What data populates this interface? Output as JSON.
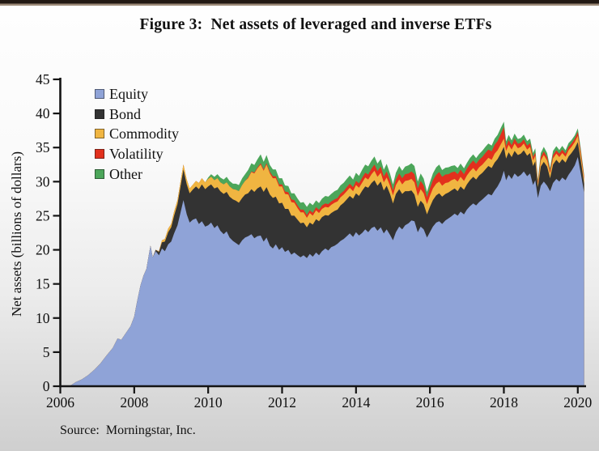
{
  "page": {
    "title": "Figure 3:  Net assets of leveraged and inverse ETFs",
    "source_note": "Source:  Morningstar, Inc."
  },
  "chart_data": {
    "type": "area",
    "stacked": true,
    "title": "Figure 3:  Net assets of leveraged and inverse ETFs",
    "xlabel": "",
    "ylabel": "Net assets (billions of dollars)",
    "units": "billions of dollars",
    "source": "Morningstar, Inc.",
    "xlim": [
      2006,
      2020.3
    ],
    "ylim": [
      0,
      45
    ],
    "x_ticks": [
      2006,
      2008,
      2010,
      2012,
      2014,
      2016,
      2018,
      2020
    ],
    "y_ticks": [
      0,
      5,
      10,
      15,
      20,
      25,
      30,
      35,
      40,
      45
    ],
    "grid": false,
    "legend_position": "top-left-inside",
    "axis_color": "#141414",
    "x": [
      2006.25,
      2006.42,
      2006.58,
      2006.75,
      2006.92,
      2007.08,
      2007.25,
      2007.42,
      2007.55,
      2007.65,
      2007.75,
      2007.9,
      2008.0,
      2008.08,
      2008.17,
      2008.25,
      2008.33,
      2008.4,
      2008.44,
      2008.5,
      2008.58,
      2008.67,
      2008.75,
      2008.83,
      2008.92,
      2009.0,
      2009.08,
      2009.17,
      2009.25,
      2009.33,
      2009.42,
      2009.5,
      2009.58,
      2009.67,
      2009.75,
      2009.83,
      2009.92,
      2010.0,
      2010.08,
      2010.17,
      2010.25,
      2010.33,
      2010.42,
      2010.5,
      2010.58,
      2010.67,
      2010.75,
      2010.83,
      2010.92,
      2011.0,
      2011.08,
      2011.17,
      2011.25,
      2011.33,
      2011.42,
      2011.5,
      2011.58,
      2011.67,
      2011.75,
      2011.83,
      2011.92,
      2012.0,
      2012.08,
      2012.17,
      2012.25,
      2012.33,
      2012.42,
      2012.5,
      2012.58,
      2012.67,
      2012.75,
      2012.83,
      2012.92,
      2013.0,
      2013.08,
      2013.17,
      2013.25,
      2013.33,
      2013.42,
      2013.5,
      2013.58,
      2013.67,
      2013.75,
      2013.83,
      2013.92,
      2014.0,
      2014.08,
      2014.17,
      2014.25,
      2014.33,
      2014.42,
      2014.5,
      2014.58,
      2014.67,
      2014.75,
      2014.83,
      2014.92,
      2015.0,
      2015.08,
      2015.17,
      2015.25,
      2015.33,
      2015.42,
      2015.5,
      2015.58,
      2015.67,
      2015.75,
      2015.83,
      2015.92,
      2016.0,
      2016.08,
      2016.17,
      2016.25,
      2016.33,
      2016.42,
      2016.5,
      2016.58,
      2016.67,
      2016.75,
      2016.83,
      2016.92,
      2017.0,
      2017.08,
      2017.17,
      2017.25,
      2017.33,
      2017.42,
      2017.5,
      2017.58,
      2017.67,
      2017.75,
      2017.83,
      2017.92,
      2018.0,
      2018.06,
      2018.13,
      2018.21,
      2018.29,
      2018.38,
      2018.46,
      2018.54,
      2018.63,
      2018.71,
      2018.79,
      2018.85,
      2018.92,
      2019.0,
      2019.08,
      2019.17,
      2019.25,
      2019.33,
      2019.42,
      2019.5,
      2019.58,
      2019.67,
      2019.75,
      2019.83,
      2019.92,
      2020.0,
      2020.08,
      2020.17
    ],
    "series": [
      {
        "name": "Equity",
        "color": "#8FA3D7",
        "values": [
          0,
          0.6,
          1.0,
          1.6,
          2.4,
          3.3,
          4.5,
          5.6,
          7.0,
          6.8,
          7.6,
          8.8,
          10.2,
          12.5,
          14.8,
          16.2,
          17.2,
          19.4,
          20.6,
          18.9,
          19.8,
          19.2,
          20.2,
          19.8,
          20.8,
          21.2,
          22.4,
          23.6,
          25.4,
          27.3,
          25.2,
          24.0,
          24.4,
          24.6,
          23.8,
          24.2,
          23.4,
          23.6,
          24.0,
          23.2,
          23.6,
          22.8,
          22.3,
          22.7,
          21.8,
          21.3,
          21.0,
          20.7,
          21.4,
          21.8,
          22.0,
          22.3,
          21.7,
          22.0,
          22.1,
          21.2,
          21.8,
          20.6,
          20.2,
          20.8,
          20.0,
          20.4,
          19.7,
          20.0,
          19.3,
          19.6,
          19.2,
          18.9,
          19.2,
          18.8,
          19.4,
          19.0,
          19.6,
          19.2,
          19.8,
          20.2,
          19.9,
          20.4,
          20.6,
          20.9,
          21.3,
          21.6,
          22.0,
          22.4,
          21.9,
          22.6,
          22.1,
          22.5,
          23.0,
          22.6,
          23.2,
          23.4,
          22.8,
          23.3,
          22.4,
          23.0,
          22.2,
          21.4,
          22.6,
          23.4,
          23.0,
          23.6,
          23.9,
          24.3,
          24.2,
          22.6,
          23.4,
          23.0,
          21.8,
          22.6,
          23.4,
          24.0,
          24.2,
          23.8,
          24.3,
          24.6,
          24.9,
          25.3,
          25.0,
          25.6,
          25.2,
          25.9,
          26.4,
          26.8,
          26.5,
          27.0,
          27.4,
          27.8,
          28.2,
          28.0,
          28.7,
          29.3,
          30.2,
          31.6,
          30.2,
          31.0,
          30.4,
          31.2,
          30.7,
          31.0,
          31.5,
          30.8,
          31.2,
          29.5,
          30.2,
          27.6,
          29.4,
          30.0,
          29.4,
          28.6,
          29.8,
          30.4,
          30.0,
          30.6,
          30.2,
          31.0,
          31.6,
          32.4,
          33.6,
          31.2,
          28.4
        ]
      },
      {
        "name": "Bond",
        "color": "#333333",
        "values": [
          0,
          0,
          0,
          0,
          0,
          0,
          0,
          0,
          0,
          0,
          0,
          0,
          0,
          0,
          0,
          0,
          0,
          0,
          0,
          0,
          0.2,
          0.5,
          0.9,
          1.4,
          1.8,
          2.1,
          2.6,
          3.1,
          3.8,
          4.5,
          4.4,
          4.3,
          4.4,
          4.7,
          5.1,
          5.4,
          5.5,
          5.7,
          5.6,
          5.8,
          5.6,
          5.8,
          5.9,
          5.8,
          6.0,
          6.1,
          6.2,
          6.2,
          6.2,
          6.3,
          6.3,
          6.6,
          6.8,
          7.0,
          7.2,
          7.3,
          7.4,
          7.5,
          7.4,
          7.0,
          6.8,
          6.5,
          6.3,
          6.0,
          5.7,
          5.4,
          5.2,
          5.0,
          4.8,
          4.5,
          4.6,
          4.7,
          4.9,
          5.0,
          5.0,
          4.9,
          5.1,
          5.0,
          5.1,
          5.0,
          5.2,
          5.3,
          5.4,
          5.5,
          5.6,
          5.7,
          5.8,
          6.2,
          6.3,
          6.5,
          6.6,
          6.8,
          6.6,
          6.7,
          6.3,
          6.4,
          6.0,
          5.4,
          5.6,
          5.5,
          5.2,
          5.0,
          4.7,
          4.4,
          3.9,
          3.7,
          3.8,
          3.7,
          3.4,
          3.7,
          3.9,
          4.0,
          4.1,
          4.0,
          3.9,
          3.8,
          3.8,
          3.7,
          3.6,
          3.7,
          3.6,
          3.7,
          3.8,
          3.9,
          3.8,
          3.9,
          3.9,
          4.0,
          4.1,
          4.0,
          4.1,
          4.0,
          4.0,
          3.5,
          3.2,
          3.3,
          3.2,
          3.3,
          3.2,
          3.1,
          3.1,
          3.0,
          3.0,
          2.8,
          2.8,
          1.6,
          2.8,
          2.9,
          2.8,
          1.9,
          2.7,
          2.8,
          2.7,
          2.7,
          2.6,
          2.7,
          2.6,
          2.5,
          2.2,
          1.9,
          1.3
        ]
      },
      {
        "name": "Commodity",
        "color": "#F0B541",
        "values": [
          0,
          0,
          0,
          0,
          0,
          0,
          0,
          0,
          0,
          0,
          0,
          0,
          0,
          0,
          0,
          0,
          0,
          0,
          0,
          0,
          0,
          0.1,
          0.3,
          0.4,
          0.5,
          0.5,
          0.6,
          0.6,
          0.7,
          0.7,
          0.7,
          0.7,
          0.7,
          0.8,
          0.9,
          0.9,
          1.0,
          1.1,
          1.1,
          1.2,
          1.3,
          1.3,
          1.4,
          1.4,
          1.5,
          1.5,
          1.6,
          1.7,
          1.9,
          2.0,
          2.2,
          2.5,
          2.7,
          2.9,
          3.2,
          3.1,
          3.3,
          3.1,
          2.9,
          2.7,
          2.5,
          2.4,
          2.2,
          2.1,
          2.0,
          1.9,
          1.7,
          1.6,
          1.5,
          1.4,
          1.4,
          1.3,
          1.3,
          1.2,
          1.2,
          1.2,
          1.2,
          1.2,
          1.2,
          1.2,
          1.2,
          1.2,
          1.2,
          1.2,
          1.1,
          1.2,
          1.2,
          1.2,
          1.3,
          1.2,
          1.3,
          1.4,
          1.3,
          1.3,
          1.2,
          1.2,
          1.2,
          1.2,
          1.3,
          1.4,
          1.4,
          1.5,
          1.6,
          1.7,
          1.8,
          1.6,
          1.7,
          1.6,
          1.5,
          1.6,
          1.7,
          1.7,
          1.7,
          1.6,
          1.6,
          1.5,
          1.5,
          1.4,
          1.4,
          1.4,
          1.3,
          1.3,
          1.3,
          1.3,
          1.2,
          1.2,
          1.2,
          1.2,
          1.2,
          1.2,
          1.3,
          1.3,
          1.3,
          1.2,
          1.1,
          1.1,
          1.1,
          1.1,
          1.0,
          1.0,
          1.0,
          0.9,
          0.9,
          0.8,
          0.8,
          0.5,
          0.9,
          1.0,
          0.9,
          0.7,
          0.9,
          0.9,
          0.9,
          0.9,
          0.85,
          0.9,
          0.9,
          0.9,
          0.9,
          0.8,
          0.6
        ]
      },
      {
        "name": "Volatility",
        "color": "#E2301D",
        "values": [
          0,
          0,
          0,
          0,
          0,
          0,
          0,
          0,
          0,
          0,
          0,
          0,
          0,
          0,
          0,
          0,
          0,
          0,
          0,
          0,
          0,
          0,
          0,
          0,
          0,
          0,
          0,
          0,
          0,
          0,
          0,
          0,
          0,
          0,
          0,
          0,
          0,
          0,
          0,
          0,
          0,
          0,
          0,
          0,
          0,
          0,
          0,
          0,
          0,
          0,
          0.1,
          0.1,
          0.15,
          0.15,
          0.2,
          0.2,
          0.2,
          0.25,
          0.3,
          0.3,
          0.3,
          0.3,
          0.35,
          0.35,
          0.4,
          0.4,
          0.4,
          0.4,
          0.4,
          0.4,
          0.4,
          0.45,
          0.45,
          0.45,
          0.5,
          0.5,
          0.5,
          0.5,
          0.5,
          0.5,
          0.55,
          0.55,
          0.6,
          0.6,
          0.6,
          0.6,
          0.65,
          0.7,
          0.7,
          0.75,
          0.8,
          0.9,
          0.85,
          0.9,
          0.85,
          0.9,
          0.8,
          0.7,
          0.8,
          0.9,
          0.9,
          1.0,
          1.0,
          1.1,
          1.2,
          1.1,
          1.2,
          1.15,
          1.0,
          1.1,
          1.2,
          1.3,
          1.4,
          1.3,
          1.25,
          1.2,
          1.15,
          1.1,
          1.1,
          1.05,
          1.0,
          1.0,
          1.05,
          1.1,
          1.1,
          1.1,
          1.15,
          1.2,
          1.2,
          1.25,
          1.3,
          1.35,
          1.5,
          1.7,
          0.7,
          0.7,
          0.65,
          0.7,
          0.65,
          0.6,
          0.6,
          0.6,
          0.55,
          0.5,
          0.5,
          0.3,
          0.5,
          0.55,
          0.5,
          0.4,
          0.5,
          0.5,
          0.5,
          0.5,
          0.45,
          0.5,
          0.5,
          0.5,
          0.6,
          0.5,
          0.4
        ]
      },
      {
        "name": "Other",
        "color": "#4CA65A",
        "values": [
          0,
          0,
          0,
          0,
          0,
          0,
          0,
          0,
          0,
          0,
          0,
          0,
          0,
          0,
          0,
          0,
          0,
          0,
          0,
          0,
          0,
          0,
          0,
          0,
          0,
          0,
          0,
          0,
          0,
          0,
          0,
          0,
          0,
          0,
          0,
          0,
          0,
          0.2,
          0.4,
          0.5,
          0.6,
          0.7,
          0.7,
          0.8,
          0.8,
          0.8,
          0.9,
          0.9,
          1.0,
          1.0,
          1.1,
          1.2,
          1.1,
          1.2,
          1.3,
          1.1,
          1.2,
          1.0,
          1.0,
          1.0,
          0.9,
          0.9,
          0.9,
          0.9,
          0.9,
          1.0,
          1.0,
          1.0,
          1.1,
          1.2,
          1.1,
          1.1,
          1.0,
          1.0,
          1.0,
          1.1,
          1.1,
          1.1,
          1.2,
          1.2,
          1.2,
          1.2,
          1.2,
          1.2,
          1.1,
          1.2,
          1.1,
          1.2,
          1.2,
          1.2,
          1.2,
          1.2,
          1.1,
          1.1,
          1.0,
          1.1,
          1.0,
          0.9,
          1.0,
          1.1,
          1.1,
          1.1,
          1.2,
          1.2,
          1.2,
          1.0,
          1.1,
          1.0,
          0.8,
          0.9,
          1.0,
          1.1,
          1.1,
          1.0,
          1.0,
          1.0,
          0.95,
          0.9,
          0.9,
          0.9,
          0.85,
          0.85,
          0.9,
          0.9,
          0.85,
          0.85,
          0.9,
          0.9,
          0.9,
          0.85,
          0.9,
          0.9,
          0.9,
          0.8,
          0.7,
          0.75,
          0.7,
          0.75,
          0.7,
          0.7,
          0.7,
          0.65,
          0.65,
          0.6,
          0.6,
          0.3,
          0.6,
          0.65,
          0.6,
          0.4,
          0.6,
          0.6,
          0.55,
          0.55,
          0.5,
          0.55,
          0.5,
          0.5,
          0.5,
          0.4,
          0.3
        ]
      }
    ]
  }
}
